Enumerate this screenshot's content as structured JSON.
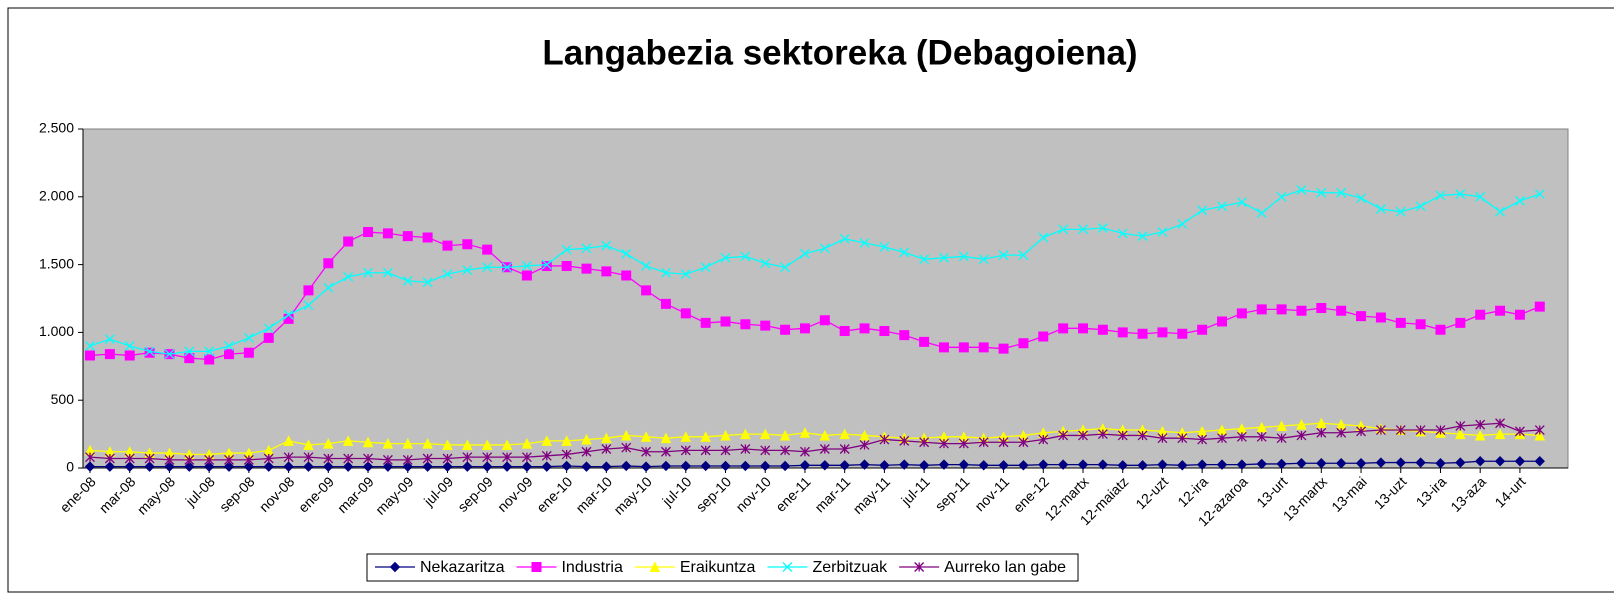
{
  "chart_data": {
    "type": "line",
    "title": "Langabezia sektoreka (Debagoiena)",
    "categories": [
      "ene-08",
      null,
      "mar-08",
      null,
      "may-08",
      null,
      "jul-08",
      null,
      "sep-08",
      null,
      "nov-08",
      null,
      "ene-09",
      null,
      "mar-09",
      null,
      "may-09",
      null,
      "jul-09",
      null,
      "sep-09",
      null,
      "nov-09",
      null,
      "ene-10",
      null,
      "mar-10",
      null,
      "may-10",
      null,
      "jul-10",
      null,
      "sep-10",
      null,
      "nov-10",
      null,
      "ene-11",
      null,
      "mar-11",
      null,
      "may-11",
      null,
      "jul-11",
      null,
      "sep-11",
      null,
      "nov-11",
      null,
      "ene-12",
      null,
      "12-martx",
      null,
      "12-maiatz",
      null,
      "12-uzt",
      null,
      "12-ira",
      null,
      "12-azaroa",
      null,
      "13-urt",
      null,
      "13-martx",
      null,
      "13-mai",
      null,
      "13-uzt",
      null,
      "13-ira",
      null,
      "13-aza",
      null,
      "14-urt",
      null
    ],
    "series": [
      {
        "name": "Nekazaritza",
        "color": "#000080",
        "marker": "diamond",
        "values": [
          10,
          10,
          10,
          10,
          10,
          10,
          10,
          10,
          10,
          10,
          10,
          10,
          10,
          10,
          10,
          10,
          10,
          10,
          10,
          10,
          10,
          10,
          10,
          10,
          15,
          10,
          10,
          15,
          10,
          15,
          15,
          15,
          15,
          15,
          15,
          15,
          20,
          20,
          20,
          25,
          20,
          25,
          20,
          25,
          25,
          20,
          20,
          20,
          25,
          25,
          25,
          25,
          20,
          20,
          25,
          20,
          25,
          25,
          25,
          30,
          30,
          35,
          35,
          35,
          35,
          40,
          40,
          40,
          35,
          40,
          50,
          50,
          50,
          50
        ]
      },
      {
        "name": "Industria",
        "color": "#ff00ff",
        "marker": "square",
        "values": [
          830,
          840,
          830,
          850,
          840,
          810,
          800,
          840,
          850,
          960,
          1100,
          1310,
          1510,
          1670,
          1740,
          1730,
          1710,
          1700,
          1640,
          1650,
          1610,
          1480,
          1420,
          1490,
          1490,
          1470,
          1450,
          1420,
          1310,
          1210,
          1140,
          1070,
          1080,
          1060,
          1050,
          1020,
          1030,
          1090,
          1010,
          1030,
          1010,
          980,
          930,
          890,
          890,
          890,
          880,
          920,
          970,
          1030,
          1030,
          1020,
          1000,
          990,
          1000,
          990,
          1020,
          1080,
          1140,
          1170,
          1170,
          1160,
          1180,
          1160,
          1120,
          1110,
          1070,
          1060,
          1020,
          1070,
          1130,
          1160,
          1130,
          1190
        ]
      },
      {
        "name": "Eraikuntza",
        "color": "#ffff00",
        "marker": "triangle",
        "values": [
          130,
          120,
          120,
          110,
          110,
          100,
          100,
          110,
          110,
          130,
          200,
          170,
          180,
          200,
          190,
          180,
          180,
          180,
          170,
          170,
          170,
          170,
          180,
          200,
          200,
          210,
          220,
          240,
          230,
          220,
          230,
          230,
          240,
          250,
          250,
          240,
          260,
          240,
          250,
          240,
          230,
          220,
          220,
          230,
          230,
          220,
          230,
          240,
          260,
          270,
          280,
          290,
          280,
          280,
          270,
          260,
          270,
          280,
          290,
          300,
          310,
          320,
          330,
          320,
          310,
          290,
          280,
          270,
          260,
          250,
          240,
          250,
          250,
          240
        ]
      },
      {
        "name": "Zerbitzuak",
        "color": "#00ffff",
        "marker": "x",
        "values": [
          900,
          950,
          900,
          860,
          840,
          860,
          860,
          900,
          960,
          1030,
          1130,
          1200,
          1330,
          1410,
          1440,
          1440,
          1380,
          1370,
          1430,
          1460,
          1480,
          1480,
          1490,
          1500,
          1610,
          1620,
          1640,
          1580,
          1490,
          1440,
          1430,
          1480,
          1550,
          1560,
          1510,
          1480,
          1580,
          1620,
          1690,
          1660,
          1630,
          1590,
          1540,
          1550,
          1560,
          1540,
          1570,
          1570,
          1700,
          1760,
          1760,
          1770,
          1730,
          1710,
          1740,
          1800,
          1900,
          1930,
          1960,
          1880,
          2000,
          2050,
          2030,
          2030,
          1990,
          1910,
          1890,
          1930,
          2010,
          2020,
          2000,
          1890,
          1970,
          2020
        ]
      },
      {
        "name": "Aurreko lan gabe",
        "color": "#800080",
        "marker": "star",
        "values": [
          80,
          70,
          70,
          70,
          60,
          60,
          60,
          60,
          60,
          70,
          80,
          80,
          70,
          70,
          70,
          60,
          60,
          70,
          70,
          80,
          80,
          80,
          80,
          90,
          100,
          120,
          140,
          150,
          120,
          120,
          130,
          130,
          130,
          140,
          130,
          130,
          120,
          140,
          140,
          170,
          210,
          200,
          190,
          180,
          180,
          190,
          190,
          190,
          210,
          240,
          240,
          250,
          240,
          240,
          220,
          220,
          210,
          220,
          230,
          230,
          220,
          240,
          260,
          260,
          270,
          280,
          280,
          280,
          280,
          310,
          320,
          330,
          270,
          280
        ]
      }
    ],
    "ylim": [
      0,
      2500
    ],
    "yticks": [
      0,
      500,
      {
        "value": 1000,
        "label": "1.000"
      },
      {
        "value": 1500,
        "label": "1.500"
      },
      {
        "value": 2000,
        "label": "2.000"
      },
      {
        "value": 2500,
        "label": "2.500"
      }
    ],
    "grid": false,
    "legend": "bottom"
  }
}
